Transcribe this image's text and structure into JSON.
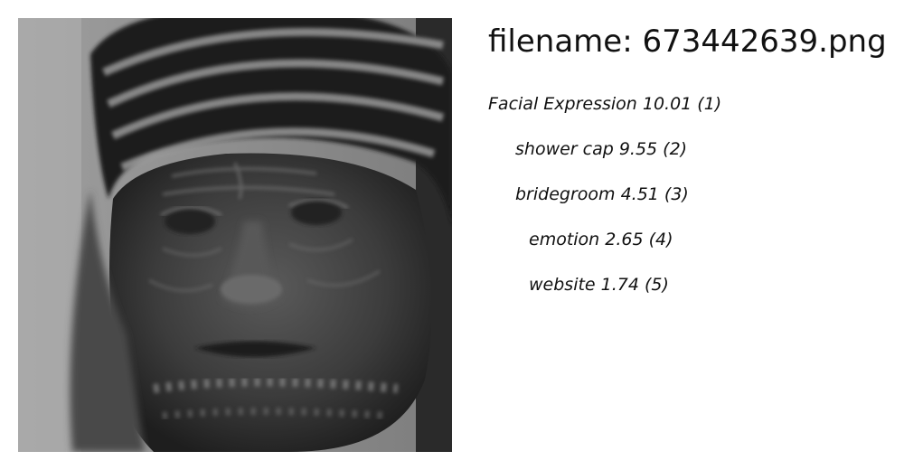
{
  "header": {
    "title": "filename: 673442639.png"
  },
  "image": {
    "description_icon": "grayscale-face-photo"
  },
  "predictions": [
    {
      "text": "Facial Expression 10.01 (1)"
    },
    {
      "text": "shower cap  9.55 (2)"
    },
    {
      "text": "bridegroom  4.51 (3)"
    },
    {
      "text": "emotion  2.65 (4)"
    },
    {
      "text": "website  1.74 (5)"
    }
  ]
}
